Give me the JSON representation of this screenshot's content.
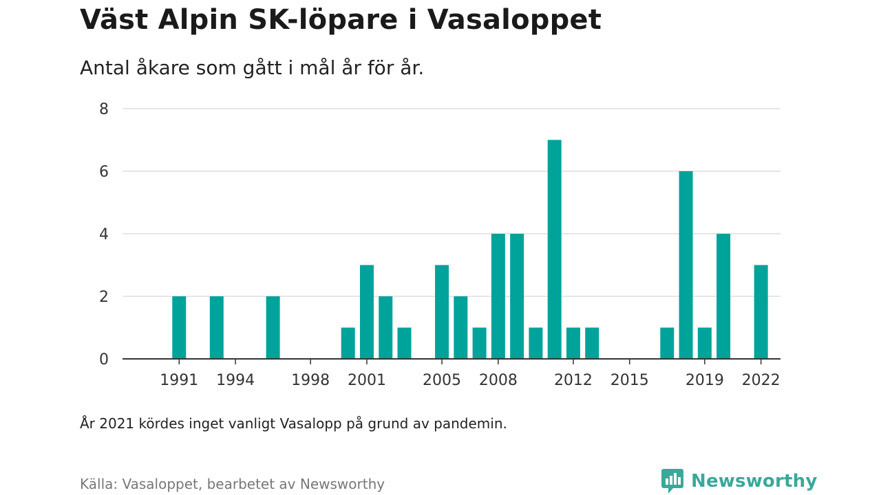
{
  "title": "Väst Alpin SK-löpare i Vasaloppet",
  "subtitle": "Antal åkare som gått i mål år för år.",
  "note": "År 2021 kördes inget vanligt Vasalopp på grund av pandemin.",
  "source": "Källa: Vasaloppet, bearbetet av Newsworthy",
  "brand": {
    "name": "Newsworthy",
    "icon": "newsworthy-logo-icon",
    "color": "#3aa89a"
  },
  "colors": {
    "bar": "#00a39a",
    "grid": "#dddddd",
    "axis": "#333333"
  },
  "chart_data": {
    "type": "bar",
    "categories": [
      "1990",
      "1991",
      "1992",
      "1993",
      "1994",
      "1995",
      "1996",
      "1997",
      "1998",
      "1999",
      "2000",
      "2001",
      "2002",
      "2003",
      "2004",
      "2005",
      "2006",
      "2007",
      "2008",
      "2009",
      "2010",
      "2011",
      "2012",
      "2013",
      "2014",
      "2015",
      "2016",
      "2017",
      "2018",
      "2019",
      "2020",
      "2021",
      "2022",
      "2023"
    ],
    "values": [
      0,
      2,
      0,
      2,
      0,
      0,
      2,
      0,
      0,
      0,
      1,
      3,
      2,
      1,
      0,
      3,
      2,
      1,
      4,
      4,
      1,
      7,
      1,
      1,
      0,
      0,
      0,
      1,
      6,
      1,
      4,
      0,
      3,
      0
    ],
    "x_tick_labels": [
      "1991",
      "1994",
      "1998",
      "2001",
      "2005",
      "2008",
      "2012",
      "2015",
      "2019",
      "2022"
    ],
    "y_ticks": [
      "0",
      "2",
      "4",
      "6",
      "8"
    ],
    "ylim": [
      0,
      8
    ],
    "grid": true,
    "legend": "none",
    "xlabel": "",
    "ylabel": ""
  }
}
